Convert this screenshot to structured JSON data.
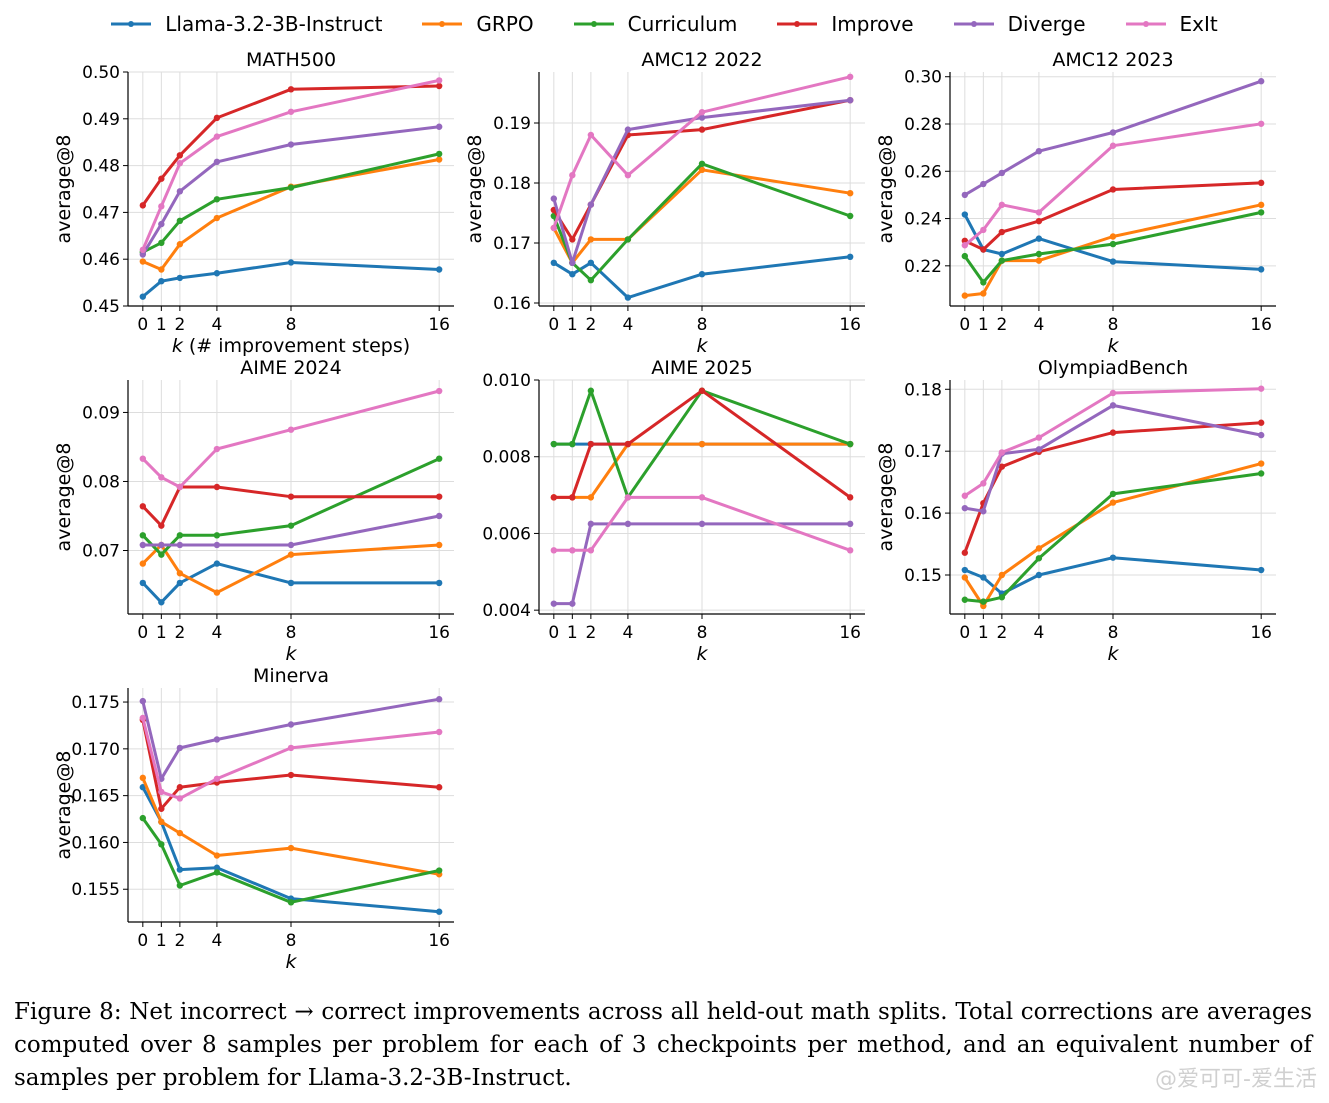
{
  "legend": {
    "series": [
      {
        "name": "Llama-3.2-3B-Instruct",
        "color": "#1f77b4"
      },
      {
        "name": "GRPO",
        "color": "#ff7f0e"
      },
      {
        "name": "Curriculum",
        "color": "#2ca02c"
      },
      {
        "name": "Improve",
        "color": "#d62728"
      },
      {
        "name": "Diverge",
        "color": "#9467bd"
      },
      {
        "name": "ExIt",
        "color": "#e377c2"
      }
    ]
  },
  "chart_data": [
    {
      "type": "line",
      "title": "MATH500",
      "xlabel": "k (# improvement steps)",
      "ylabel": "average@8",
      "x": [
        0,
        1,
        2,
        4,
        8,
        16
      ],
      "xticks": [
        "0",
        "1",
        "2",
        "4",
        "8",
        "16"
      ],
      "xlim": [
        -0.8,
        16.8
      ],
      "ylim": [
        0.45,
        0.5
      ],
      "yticks": [
        "0.45",
        "0.46",
        "0.47",
        "0.48",
        "0.49",
        "0.50"
      ],
      "grid": true,
      "series": [
        {
          "name": "Llama-3.2-3B-Instruct",
          "values": [
            0.452,
            0.4553,
            0.456,
            0.457,
            0.4593,
            0.4578
          ]
        },
        {
          "name": "GRPO",
          "values": [
            0.4595,
            0.4578,
            0.4632,
            0.4688,
            0.4755,
            0.4813
          ]
        },
        {
          "name": "Curriculum",
          "values": [
            0.4615,
            0.4635,
            0.4682,
            0.4728,
            0.4753,
            0.4825
          ]
        },
        {
          "name": "Improve",
          "values": [
            0.4715,
            0.4772,
            0.4822,
            0.4902,
            0.4963,
            0.497
          ]
        },
        {
          "name": "Diverge",
          "values": [
            0.461,
            0.4675,
            0.4745,
            0.4808,
            0.4845,
            0.4883
          ]
        },
        {
          "name": "ExIt",
          "values": [
            0.462,
            0.4713,
            0.4805,
            0.4862,
            0.4915,
            0.4982
          ]
        }
      ]
    },
    {
      "type": "line",
      "title": "AMC12 2022",
      "xlabel": "k",
      "ylabel": "average@8",
      "x": [
        0,
        1,
        2,
        4,
        8,
        16
      ],
      "xticks": [
        "0",
        "1",
        "2",
        "4",
        "8",
        "16"
      ],
      "xlim": [
        -0.8,
        16.8
      ],
      "ylim": [
        0.1595,
        0.1985
      ],
      "yticks": [
        "0.16",
        "0.17",
        "0.18",
        "0.19"
      ],
      "grid": true,
      "series": [
        {
          "name": "Llama-3.2-3B-Instruct",
          "values": [
            0.1667,
            0.1648,
            0.1667,
            0.1609,
            0.1648,
            0.1677
          ]
        },
        {
          "name": "GRPO",
          "values": [
            0.1725,
            0.1667,
            0.1706,
            0.1706,
            0.1822,
            0.1783
          ]
        },
        {
          "name": "Curriculum",
          "values": [
            0.1745,
            0.1667,
            0.1638,
            0.1706,
            0.1832,
            0.1745
          ]
        },
        {
          "name": "Improve",
          "values": [
            0.1755,
            0.1706,
            0.1764,
            0.188,
            0.1889,
            0.1938
          ]
        },
        {
          "name": "Diverge",
          "values": [
            0.1774,
            0.1667,
            0.1764,
            0.1889,
            0.1909,
            0.1938
          ]
        },
        {
          "name": "ExIt",
          "values": [
            0.1725,
            0.1813,
            0.188,
            0.1813,
            0.1918,
            0.1977
          ]
        }
      ]
    },
    {
      "type": "line",
      "title": "AMC12 2023",
      "xlabel": "k",
      "ylabel": "average@8",
      "x": [
        0,
        1,
        2,
        4,
        8,
        16
      ],
      "xticks": [
        "0",
        "1",
        "2",
        "4",
        "8",
        "16"
      ],
      "xlim": [
        -0.8,
        16.8
      ],
      "ylim": [
        0.203,
        0.302
      ],
      "yticks": [
        "0.22",
        "0.24",
        "0.26",
        "0.28",
        "0.30"
      ],
      "grid": true,
      "series": [
        {
          "name": "Llama-3.2-3B-Instruct",
          "values": [
            0.2417,
            0.2269,
            0.225,
            0.2315,
            0.2218,
            0.2185
          ]
        },
        {
          "name": "GRPO",
          "values": [
            0.2074,
            0.2083,
            0.2222,
            0.2222,
            0.2324,
            0.2458
          ]
        },
        {
          "name": "Curriculum",
          "values": [
            0.2241,
            0.213,
            0.2222,
            0.225,
            0.2292,
            0.2426
          ]
        },
        {
          "name": "Improve",
          "values": [
            0.2306,
            0.2269,
            0.2343,
            0.2389,
            0.2523,
            0.2551
          ]
        },
        {
          "name": "Diverge",
          "values": [
            0.25,
            0.2546,
            0.2593,
            0.2685,
            0.2764,
            0.2981
          ]
        },
        {
          "name": "ExIt",
          "values": [
            0.2287,
            0.2352,
            0.2458,
            0.2426,
            0.2708,
            0.2801
          ]
        }
      ]
    },
    {
      "type": "line",
      "title": "AIME 2024",
      "xlabel": "k",
      "ylabel": "average@8",
      "x": [
        0,
        1,
        2,
        4,
        8,
        16
      ],
      "xticks": [
        "0",
        "1",
        "2",
        "4",
        "8",
        "16"
      ],
      "xlim": [
        -0.8,
        16.8
      ],
      "ylim": [
        0.0608,
        0.0947
      ],
      "yticks": [
        "0.07",
        "0.08",
        "0.09"
      ],
      "grid": true,
      "series": [
        {
          "name": "Llama-3.2-3B-Instruct",
          "values": [
            0.0653,
            0.0625,
            0.0653,
            0.0681,
            0.0653,
            0.0653
          ]
        },
        {
          "name": "GRPO",
          "values": [
            0.0681,
            0.0708,
            0.0667,
            0.0639,
            0.0694,
            0.0708
          ]
        },
        {
          "name": "Curriculum",
          "values": [
            0.0722,
            0.0694,
            0.0722,
            0.0722,
            0.0736,
            0.0833
          ]
        },
        {
          "name": "Improve",
          "values": [
            0.0764,
            0.0736,
            0.0792,
            0.0792,
            0.0778,
            0.0778
          ]
        },
        {
          "name": "Diverge",
          "values": [
            0.0708,
            0.0708,
            0.0708,
            0.0708,
            0.0708,
            0.075
          ]
        },
        {
          "name": "ExIt",
          "values": [
            0.0833,
            0.0806,
            0.0792,
            0.0847,
            0.0875,
            0.0931
          ]
        }
      ]
    },
    {
      "type": "line",
      "title": "AIME 2025",
      "xlabel": "k",
      "ylabel": "",
      "x": [
        0,
        1,
        2,
        4,
        8,
        16
      ],
      "xticks": [
        "0",
        "1",
        "2",
        "4",
        "8",
        "16"
      ],
      "xlim": [
        -0.8,
        16.8
      ],
      "ylim": [
        0.0039,
        0.01
      ],
      "yticks": [
        "0.004",
        "0.006",
        "0.008",
        "0.010"
      ],
      "grid": true,
      "series": [
        {
          "name": "Llama-3.2-3B-Instruct",
          "values": [
            0.00833,
            0.00833,
            0.00833,
            0.00833,
            0.00833,
            0.00833
          ]
        },
        {
          "name": "GRPO",
          "values": [
            0.00694,
            0.00694,
            0.00694,
            0.00833,
            0.00833,
            0.00833
          ]
        },
        {
          "name": "Curriculum",
          "values": [
            0.00833,
            0.00833,
            0.00972,
            0.00694,
            0.00972,
            0.00833
          ]
        },
        {
          "name": "Improve",
          "values": [
            0.00694,
            0.00694,
            0.00833,
            0.00833,
            0.00972,
            0.00694
          ]
        },
        {
          "name": "Diverge",
          "values": [
            0.00417,
            0.00417,
            0.00625,
            0.00625,
            0.00625,
            0.00625
          ]
        },
        {
          "name": "ExIt",
          "values": [
            0.00556,
            0.00556,
            0.00556,
            0.00694,
            0.00694,
            0.00556
          ]
        }
      ]
    },
    {
      "type": "line",
      "title": "OlympiadBench",
      "xlabel": "k",
      "ylabel": "average@8",
      "x": [
        0,
        1,
        2,
        4,
        8,
        16
      ],
      "xticks": [
        "0",
        "1",
        "2",
        "4",
        "8",
        "16"
      ],
      "xlim": [
        -0.8,
        16.8
      ],
      "ylim": [
        0.1437,
        0.1815
      ],
      "yticks": [
        "0.15",
        "0.16",
        "0.17",
        "0.18"
      ],
      "grid": true,
      "series": [
        {
          "name": "Llama-3.2-3B-Instruct",
          "values": [
            0.1508,
            0.1496,
            0.147,
            0.15,
            0.1528,
            0.1508
          ]
        },
        {
          "name": "GRPO",
          "values": [
            0.1496,
            0.145,
            0.15,
            0.1543,
            0.1617,
            0.168
          ]
        },
        {
          "name": "Curriculum",
          "values": [
            0.146,
            0.1457,
            0.1464,
            0.1527,
            0.1631,
            0.1664
          ]
        },
        {
          "name": "Improve",
          "values": [
            0.1536,
            0.1616,
            0.1675,
            0.1699,
            0.173,
            0.1746
          ]
        },
        {
          "name": "Diverge",
          "values": [
            0.1608,
            0.1603,
            0.1696,
            0.1703,
            0.1774,
            0.1726
          ]
        },
        {
          "name": "ExIt",
          "values": [
            0.1628,
            0.1648,
            0.1698,
            0.1722,
            0.1794,
            0.1801
          ]
        }
      ]
    },
    {
      "type": "line",
      "title": "Minerva",
      "xlabel": "k",
      "ylabel": "average@8",
      "x": [
        0,
        1,
        2,
        4,
        8,
        16
      ],
      "xticks": [
        "0",
        "1",
        "2",
        "4",
        "8",
        "16"
      ],
      "xlim": [
        -0.8,
        16.8
      ],
      "ylim": [
        0.1515,
        0.1765
      ],
      "yticks": [
        "0.155",
        "0.160",
        "0.165",
        "0.170",
        "0.175"
      ],
      "grid": true,
      "series": [
        {
          "name": "Llama-3.2-3B-Instruct",
          "values": [
            0.1659,
            0.1622,
            0.1571,
            0.1573,
            0.154,
            0.1526
          ]
        },
        {
          "name": "GRPO",
          "values": [
            0.1669,
            0.1622,
            0.161,
            0.1586,
            0.1594,
            0.1566
          ]
        },
        {
          "name": "Curriculum",
          "values": [
            0.1626,
            0.1598,
            0.1554,
            0.1568,
            0.1536,
            0.157
          ]
        },
        {
          "name": "Improve",
          "values": [
            0.1731,
            0.1636,
            0.1659,
            0.1664,
            0.1672,
            0.1659
          ]
        },
        {
          "name": "Diverge",
          "values": [
            0.1751,
            0.1668,
            0.1701,
            0.171,
            0.1726,
            0.1753
          ]
        },
        {
          "name": "ExIt",
          "values": [
            0.1733,
            0.1654,
            0.1647,
            0.1668,
            0.1701,
            0.1718
          ]
        }
      ]
    }
  ],
  "caption": "Figure 8: Net incorrect → correct improvements across all held-out math splits. Total corrections are averages computed over 8 samples per problem for each of 3 checkpoints per method, and an equivalent number of samples per problem for Llama-3.2-3B-Instruct.",
  "watermark": "@爱可可-爱生活"
}
